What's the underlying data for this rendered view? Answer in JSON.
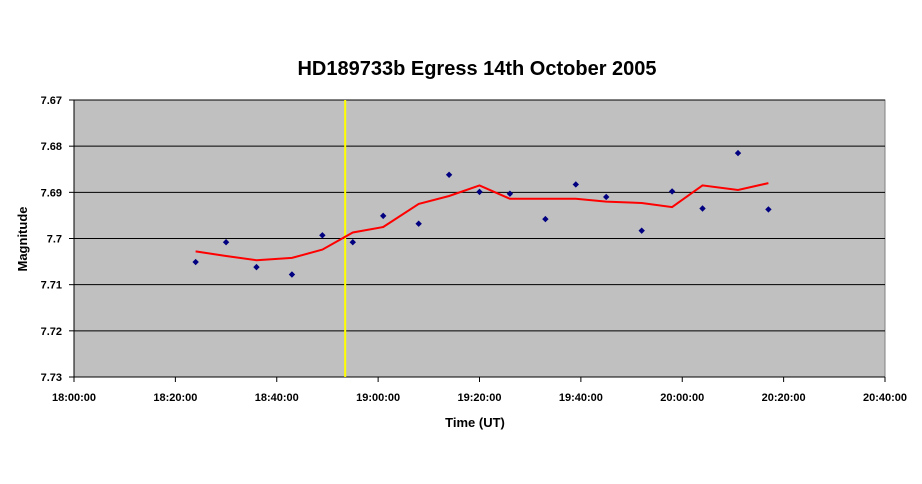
{
  "chart_data": {
    "type": "scatter",
    "title": "HD189733b Egress 14th October 2005",
    "xlabel": "Time (UT)",
    "ylabel": "Magnitude",
    "x_ticks": [
      "18:00:00",
      "18:20:00",
      "18:40:00",
      "19:00:00",
      "19:20:00",
      "19:40:00",
      "20:00:00",
      "20:20:00",
      "20:40:00"
    ],
    "y_ticks": [
      "7.67",
      "7.68",
      "7.69",
      "7.7",
      "7.71",
      "7.72",
      "7.73"
    ],
    "xlim": [
      "18:00:00",
      "20:40:00"
    ],
    "ylim": [
      7.73,
      7.67
    ],
    "y_inverted": true,
    "grid": "horizontal",
    "legend": "none",
    "colors": {
      "plot_area": "#c0c0c0",
      "points": "#000080",
      "trend": "#ff0000",
      "marker_line": "#ffff00"
    },
    "egress_marker_time": "18:53:30",
    "series": [
      {
        "kind": "points",
        "x": [
          "18:24:00",
          "18:30:00",
          "18:36:00",
          "18:43:00",
          "18:49:00",
          "18:55:00",
          "19:01:00",
          "19:08:00",
          "19:14:00",
          "19:20:00",
          "19:26:00",
          "19:33:00",
          "19:39:00",
          "19:45:00",
          "19:52:00",
          "19:58:00",
          "20:04:00",
          "20:11:00",
          "20:17:00"
        ],
        "y": [
          7.7051,
          7.7008,
          7.7062,
          7.7078,
          7.6993,
          7.7008,
          7.6951,
          7.6968,
          7.6862,
          7.6899,
          7.6903,
          7.6958,
          7.6883,
          7.691,
          7.6983,
          7.6898,
          7.6935,
          7.6815,
          7.6937
        ]
      },
      {
        "kind": "trend",
        "x": [
          "18:24:00",
          "18:30:00",
          "18:36:00",
          "18:43:00",
          "18:49:00",
          "18:55:00",
          "19:01:00",
          "19:08:00",
          "19:14:00",
          "19:20:00",
          "19:26:00",
          "19:33:00",
          "19:39:00",
          "19:45:00",
          "19:52:00",
          "19:58:00",
          "20:04:00",
          "20:11:00",
          "20:17:00"
        ],
        "y": [
          7.7028,
          7.7038,
          7.7047,
          7.7042,
          7.7024,
          7.6987,
          7.6975,
          7.6925,
          7.6908,
          7.6885,
          7.6914,
          7.6914,
          7.6914,
          7.692,
          7.6923,
          7.6932,
          7.6885,
          7.6895,
          7.688
        ]
      }
    ]
  }
}
